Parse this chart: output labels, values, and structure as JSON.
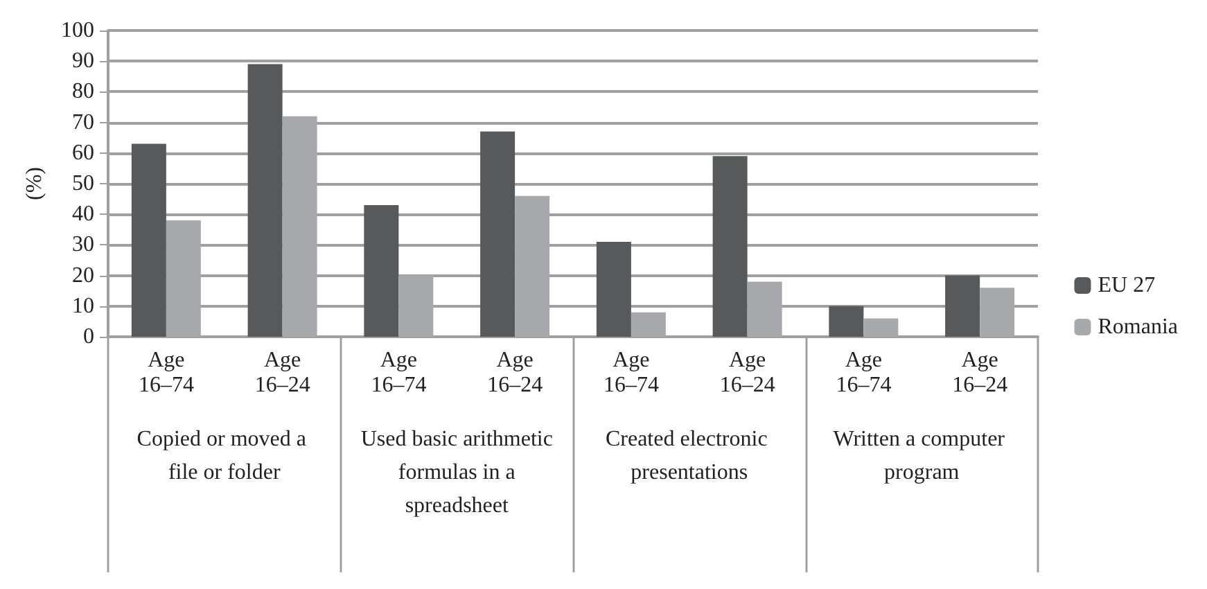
{
  "chart_data": {
    "type": "bar",
    "ylabel": "(%)",
    "categories": [
      "Age\n16–74",
      "Age\n16–24",
      "Age\n16–74",
      "Age\n16–24",
      "Age\n16–74",
      "Age\n16–24",
      "Age\n16–74",
      "Age\n16–24"
    ],
    "series": [
      {
        "name": "EU 27",
        "color": "#58595b",
        "values": [
          63,
          89,
          43,
          67,
          31,
          59,
          10,
          20
        ]
      },
      {
        "name": "Romania",
        "color": "#a7a9ac",
        "values": [
          38,
          72,
          20,
          46,
          8,
          18,
          6,
          16
        ]
      }
    ],
    "annotations": [
      "Copied or moved a file or folder",
      "Used basic arithmetic formulas in a spreadsheet",
      "Created electronic presentations",
      "Written a computer program"
    ],
    "ylim": [
      0,
      100
    ],
    "yticks": [
      0,
      10,
      20,
      30,
      40,
      50,
      60,
      70,
      80,
      90,
      100
    ],
    "grid": "y",
    "legend": "right"
  }
}
